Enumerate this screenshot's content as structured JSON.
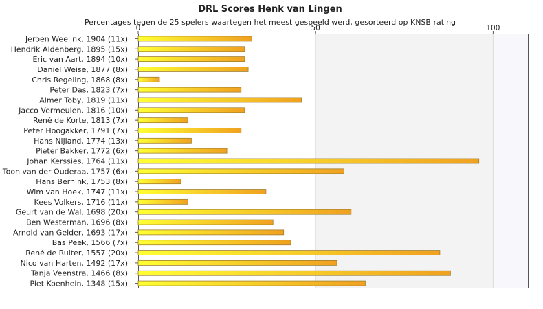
{
  "chart_data": {
    "type": "bar",
    "orientation": "horizontal",
    "title": "DRL Scores Henk van Lingen",
    "subtitle": "Percentages tegen de 25 spelers waartegen het meest gespeeld werd, gesorteerd op KNSB rating",
    "xlim": [
      0,
      110
    ],
    "xticks": [
      0,
      50,
      100
    ],
    "tick_labels": [
      "0",
      "50",
      "100"
    ],
    "tick_position": "top",
    "grid": false,
    "legend": "none",
    "colors": {
      "bar_left": "#ffff33",
      "bar_right": "#f0a020",
      "bar_border": "#a08030",
      "band_light": "#f3f3f3",
      "band_lighter": "#f8f8fc"
    },
    "categories": [
      "Jeroen Weelink, 1904 (11x)",
      "Hendrik Aldenberg, 1895 (15x)",
      "Eric van Aart, 1894 (10x)",
      "Daniel Weise, 1877 (8x)",
      "Chris Regeling, 1868 (8x)",
      "Peter Das, 1823 (7x)",
      "Almer Toby, 1819 (11x)",
      "Jacco Vermeulen, 1816 (10x)",
      "René de Korte, 1813 (7x)",
      "Peter Hoogakker, 1791 (7x)",
      "Hans Nijland, 1774 (13x)",
      "Pieter Bakker, 1772 (6x)",
      "Johan Kerssies, 1764 (11x)",
      "Toon van der Ouderaa, 1757 (6x)",
      "Hans Bernink, 1753 (8x)",
      "Wim van Hoek, 1747 (11x)",
      "Kees Volkers, 1716 (11x)",
      "Geurt van de Wal, 1698 (20x)",
      "Ben Westerman, 1696 (8x)",
      "Arnold van Gelder, 1693 (17x)",
      "Bas Peek, 1566 (7x)",
      "René de Ruiter, 1557 (20x)",
      "Nico van Harten, 1492 (17x)",
      "Tanja Veenstra, 1466 (8x)",
      "Piet Koenhein, 1348 (15x)"
    ],
    "values": [
      32,
      30,
      30,
      31,
      6,
      29,
      46,
      30,
      14,
      29,
      15,
      25,
      96,
      58,
      12,
      36,
      14,
      60,
      38,
      41,
      43,
      85,
      56,
      88,
      64
    ]
  }
}
